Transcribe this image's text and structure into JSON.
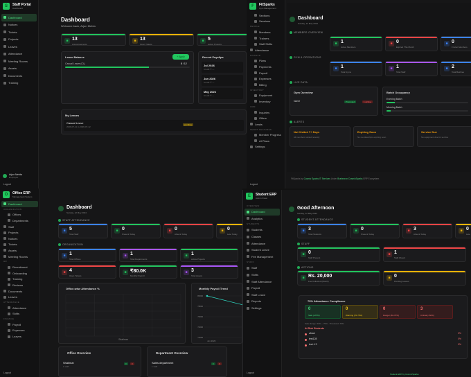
{
  "panel1": {
    "brand": "Staff Portal",
    "brand_sub": "Dashboard",
    "nav": [
      "Dashboard",
      "Notices",
      "Tickets",
      "Projects",
      "Leaves",
      "Attendance",
      "Meeting Rooms",
      "Assets",
      "Documents",
      "Training"
    ],
    "user": "Arjun Mehta",
    "user_sub": "Employee",
    "logout": "Logout",
    "title": "Dashboard",
    "welcome": "Welcome back, Arjun Mehta",
    "stats": [
      {
        "value": "13",
        "label": "Announcements"
      },
      {
        "value": "13",
        "label": "Open Tickets"
      },
      {
        "value": "5",
        "label": "Active Projects"
      }
    ],
    "leave_title": "Leave Balance",
    "apply_label": "+ Apply",
    "leave_type": "Casual Leave (CL)",
    "leave_count": "8 / 12",
    "leave_fraction": 0.67,
    "payslips_title": "Recent Payslips",
    "payslips": [
      {
        "month": "Jul 2026",
        "amt": "Credit: ₹ —"
      },
      {
        "month": "Jun 2026",
        "amt": "Credit: ₹ —"
      },
      {
        "month": "May 2026",
        "amt": "Credit: ₹ —"
      }
    ],
    "myleaves_title": "My Leaves",
    "myleave_type": "Casual Leave",
    "myleave_dates": "2026-07-11 to 2026-07-12",
    "myleave_status": "pending"
  },
  "panel2": {
    "brand": "FitSparks",
    "brand_sub": "Gym Management",
    "nav": [
      {
        "t": "s",
        "l": "Sections"
      },
      {
        "t": "s",
        "l": "Sessions"
      },
      {
        "t": "h",
        "l": "PEOPLE"
      },
      {
        "t": "s",
        "l": "Members"
      },
      {
        "t": "s",
        "l": "Trainers"
      },
      {
        "t": "s",
        "l": "Staff Shifts"
      },
      {
        "t": "i",
        "l": "Attendance"
      },
      {
        "t": "h",
        "l": "FINANCE"
      },
      {
        "t": "s",
        "l": "Plans"
      },
      {
        "t": "s",
        "l": "Payments"
      },
      {
        "t": "s",
        "l": "Payroll"
      },
      {
        "t": "s",
        "l": "Expenses"
      },
      {
        "t": "s",
        "l": "Billing"
      },
      {
        "t": "h",
        "l": "INVENTORY"
      },
      {
        "t": "s",
        "l": "Equipment"
      },
      {
        "t": "s",
        "l": "Inventory"
      },
      {
        "t": "h",
        "l": "CRM"
      },
      {
        "t": "s",
        "l": "Inquiries"
      },
      {
        "t": "s",
        "l": "Offers"
      },
      {
        "t": "i",
        "l": "Leads"
      },
      {
        "t": "h",
        "l": "SMART FEATURES"
      },
      {
        "t": "s",
        "l": "Member Progress"
      },
      {
        "t": "s",
        "l": "AI Plans"
      },
      {
        "t": "i",
        "l": "Settings"
      }
    ],
    "logout": "Logout",
    "title": "Dashboard",
    "date": "Sunday, 12 May 2024",
    "sec_members": "MEMBERS OVERVIEW",
    "members": [
      {
        "v": "1",
        "l": "Active Members"
      },
      {
        "v": "0",
        "l": "Expired This Month"
      },
      {
        "v": "0",
        "l": "Frozen Members"
      }
    ],
    "sec_ops": "GYM & OPERATIONS",
    "ops": [
      {
        "v": "1",
        "l": "Total Gyms"
      },
      {
        "v": "1",
        "l": "Total Staff"
      },
      {
        "v": "2",
        "l": "Total Batches"
      }
    ],
    "sec_live": "LIVE DATA",
    "gym_overview": "Gym Overview",
    "gym_name": "Name",
    "gym_status": "Promoted",
    "gym_pill2": "1 Active",
    "batch_title": "Batch Occupancy",
    "batches": [
      {
        "name": "Evening Batch",
        "fill": 0.1
      },
      {
        "name": "Morning Batch",
        "fill": 0.05
      }
    ],
    "sec_alerts": "ALERTS",
    "alerts": [
      {
        "t": "Not Visited 7+ Days",
        "s": "All members visited recently"
      },
      {
        "t": "Expiring Soon",
        "s": "No memberships expiring soon"
      },
      {
        "t": "Service Due",
        "s": "No equipment due for service"
      }
    ],
    "footer": "FitSparks by",
    "footer_co": "Cosmic Sparks IT Services",
    "footer_under": "Under",
    "footer_co2": "Brahecron CosmicSparks",
    "footer_tail": "ERP Ecosystem"
  },
  "panel3": {
    "brand": "Office ERP",
    "brand_sub": "Management System",
    "nav": [
      {
        "t": "a",
        "l": "Dashboard"
      },
      {
        "t": "h",
        "l": "ORGANIZATION"
      },
      {
        "t": "s",
        "l": "Offices"
      },
      {
        "t": "s",
        "l": "Departments"
      },
      {
        "t": "i",
        "l": "Staff"
      },
      {
        "t": "i",
        "l": "Projects"
      },
      {
        "t": "i",
        "l": "Notices"
      },
      {
        "t": "i",
        "l": "Tickets"
      },
      {
        "t": "i",
        "l": "Assets"
      },
      {
        "t": "i",
        "l": "Meeting Rooms"
      },
      {
        "t": "h",
        "l": "HR"
      },
      {
        "t": "s",
        "l": "Recruitment"
      },
      {
        "t": "s",
        "l": "Onboarding"
      },
      {
        "t": "s",
        "l": "Training"
      },
      {
        "t": "s",
        "l": "Reviews"
      },
      {
        "t": "i",
        "l": "Documents"
      },
      {
        "t": "i",
        "l": "Leaves"
      },
      {
        "t": "h",
        "l": "ATTENDANCE"
      },
      {
        "t": "s",
        "l": "Attendance"
      },
      {
        "t": "s",
        "l": "Shifts"
      },
      {
        "t": "h",
        "l": "FINANCE"
      },
      {
        "t": "s",
        "l": "Payroll"
      },
      {
        "t": "s",
        "l": "Expenses"
      },
      {
        "t": "s",
        "l": "Leaves"
      }
    ],
    "logout": "Logout",
    "title": "Dashboard",
    "date": "Sunday, 12 May 2024",
    "sec_att": "STAFF ATTENDANCE",
    "att": [
      {
        "v": "5",
        "l": "Total Staff"
      },
      {
        "v": "0",
        "l": "Present Today"
      },
      {
        "v": "0",
        "l": "Absent Today"
      },
      {
        "v": "0",
        "l": "Late Today"
      }
    ],
    "sec_org": "ORGANIZATION",
    "org": [
      {
        "v": "1",
        "l": "Total Offices"
      },
      {
        "v": "1",
        "l": "Total Departments"
      },
      {
        "v": "1",
        "l": "Active Projects"
      },
      {
        "v": "4",
        "l": "Open Tickets"
      },
      {
        "v": "₹80.0K",
        "l": "Monthly Payroll"
      },
      {
        "v": "3",
        "l": "Total Assets"
      }
    ],
    "chart1_title": "Office-wise Attendance %",
    "chart1_x": "Shalimar",
    "chart2_title": "Monthly Payroll Trend",
    "chart_data": [
      {
        "type": "bar",
        "title": "Office-wise Attendance %",
        "categories": [
          "Shalimar"
        ],
        "values": [
          0
        ],
        "ylim": [
          0,
          100
        ]
      },
      {
        "type": "line",
        "title": "Monthly Payroll Trend",
        "x": [
          "Jun 2026",
          "Jul 2026"
        ],
        "values": [
          80000,
          76000
        ],
        "ylim": [
          70000,
          80000
        ],
        "yticks": [
          "80000",
          "78000",
          "76000",
          "74000",
          "72000"
        ]
      }
    ],
    "office_title": "Office Overview",
    "office_name": "Shalimar",
    "office_sub": "1 staff",
    "dept_title": "Department Overview",
    "dept_name": "Sales department",
    "dept_sub": "1 staff"
  },
  "panel4": {
    "brand": "Student ERP",
    "brand_sub": "Admin Panel",
    "nav": [
      {
        "t": "h",
        "l": "OVERVIEW"
      },
      {
        "t": "a",
        "l": "Dashboard"
      },
      {
        "t": "i",
        "l": "Analytics"
      },
      {
        "t": "h",
        "l": "STUDENTS"
      },
      {
        "t": "i",
        "l": "Students"
      },
      {
        "t": "i",
        "l": "Classes"
      },
      {
        "t": "i",
        "l": "Attendance"
      },
      {
        "t": "i",
        "l": "Student Leave"
      },
      {
        "t": "i",
        "l": "Fee Management"
      },
      {
        "t": "h",
        "l": "STAFF"
      },
      {
        "t": "i",
        "l": "Staff"
      },
      {
        "t": "i",
        "l": "Shifts"
      },
      {
        "t": "i",
        "l": "Staff Attendance"
      },
      {
        "t": "i",
        "l": "Payroll"
      },
      {
        "t": "i",
        "l": "Staff Leave"
      },
      {
        "t": "i",
        "l": "Reports"
      },
      {
        "t": "i",
        "l": "Settings"
      }
    ],
    "logout": "Logout",
    "title": "Good Afternoon",
    "date": "Sunday, 12 May 2024",
    "sec_att": "STUDENT ATTENDANCE",
    "att": [
      {
        "v": "3",
        "l": "Total Students"
      },
      {
        "v": "0",
        "l": "Present Today"
      },
      {
        "v": "3",
        "l": "Absent Today"
      },
      {
        "v": "0",
        "l": "Late"
      }
    ],
    "sec_staff": "STAFF",
    "staff": [
      {
        "v": "0",
        "l": "Staff Present"
      },
      {
        "v": "1",
        "l": "Staff Absent"
      }
    ],
    "sec_actions": "ACTIONS",
    "actions": [
      {
        "v": "Rs. 20,000",
        "l": "Fee Collected (Month)"
      },
      {
        "v": "0",
        "l": "Pending Leaves"
      }
    ],
    "comp_title": "75% Attendance Compliance",
    "comp": [
      {
        "v": "0",
        "l": "Safe (≥75%)"
      },
      {
        "v": "0",
        "l": "Warning (70-75%)"
      },
      {
        "v": "0",
        "l": "Danger (60-70%)"
      },
      {
        "v": "3",
        "l": "Critical (<60%)"
      }
    ],
    "comp_note": "Safe Range: 60% – 75% · Threshold: 75%",
    "risk_title": "At Risk Students",
    "risk": [
      {
        "n": "afriah",
        "p": "0%"
      },
      {
        "n": "test128",
        "p": "0%"
      },
      {
        "n": "test 4 3",
        "p": "0%"
      }
    ],
    "footer": "Student ERP by CosmicSparks"
  }
}
